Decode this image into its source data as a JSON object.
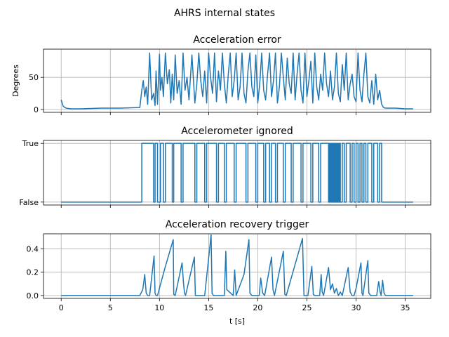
{
  "figure_title": "AHRS internal states",
  "colors": {
    "series": "#1f77b4",
    "grid": "#b0b0b0"
  },
  "chart_data": [
    {
      "type": "line",
      "title": "Acceleration error",
      "xlabel": "",
      "ylabel": "Degrees",
      "xlim": [
        -1.8,
        37.6
      ],
      "ylim": [
        -4.5,
        94
      ],
      "xticks": [
        0,
        5,
        10,
        15,
        20,
        25,
        30,
        35
      ],
      "show_xtick_labels": false,
      "yticks": [
        0,
        50
      ],
      "ytick_labels": [
        "0",
        "50"
      ],
      "grid": true,
      "series": [
        {
          "x": [
            0,
            0.2,
            0.5,
            1.0,
            2.0,
            4.0,
            6.0,
            8.0,
            8.2,
            8.35,
            8.5,
            8.65,
            8.8,
            9.0,
            9.2,
            9.4,
            9.55,
            9.65,
            9.8,
            10.0,
            10.1,
            10.25,
            10.4,
            10.6,
            10.8,
            11.0,
            11.15,
            11.3,
            11.45,
            11.6,
            11.8,
            12.0,
            12.2,
            12.4,
            12.6,
            12.8,
            13.0,
            13.3,
            13.6,
            13.8,
            14.0,
            14.2,
            14.4,
            14.6,
            14.8,
            15.0,
            15.2,
            15.4,
            15.6,
            15.8,
            16.0,
            16.2,
            16.4,
            16.6,
            16.8,
            17.0,
            17.2,
            17.4,
            17.6,
            17.8,
            18.0,
            18.2,
            18.4,
            18.6,
            18.8,
            19.0,
            19.2,
            19.4,
            19.6,
            19.8,
            20.0,
            20.2,
            20.4,
            20.6,
            20.8,
            21.0,
            21.2,
            21.4,
            21.6,
            21.8,
            22.0,
            22.2,
            22.4,
            22.6,
            22.8,
            23.0,
            23.2,
            23.4,
            23.6,
            23.8,
            24.0,
            24.2,
            24.4,
            24.6,
            24.8,
            25.0,
            25.2,
            25.4,
            25.6,
            25.8,
            26.0,
            26.2,
            26.4,
            26.6,
            26.8,
            27.0,
            27.2,
            27.4,
            27.6,
            27.8,
            28.0,
            28.2,
            28.4,
            28.6,
            28.8,
            29.0,
            29.2,
            29.4,
            29.6,
            29.8,
            30.0,
            30.2,
            30.4,
            30.6,
            30.8,
            31.0,
            31.2,
            31.4,
            31.6,
            31.8,
            32.0,
            32.2,
            32.4,
            32.6,
            32.8,
            33.0,
            33.5,
            34.0,
            35.0,
            35.8
          ],
          "y": [
            15,
            5,
            2,
            1,
            1,
            2,
            2,
            3,
            30,
            45,
            20,
            35,
            8,
            88,
            15,
            25,
            6,
            60,
            8,
            86,
            30,
            50,
            20,
            88,
            40,
            62,
            10,
            55,
            15,
            85,
            25,
            45,
            8,
            88,
            30,
            50,
            15,
            85,
            10,
            40,
            88,
            45,
            20,
            60,
            10,
            88,
            50,
            25,
            88,
            12,
            60,
            30,
            88,
            40,
            10,
            55,
            88,
            20,
            45,
            88,
            15,
            35,
            88,
            25,
            10,
            60,
            88,
            35,
            20,
            85,
            10,
            40,
            88,
            30,
            15,
            55,
            88,
            20,
            45,
            88,
            10,
            35,
            88,
            50,
            15,
            80,
            40,
            25,
            88,
            15,
            55,
            88,
            30,
            10,
            88,
            20,
            45,
            75,
            10,
            88,
            35,
            15,
            55,
            30,
            88,
            40,
            20,
            60,
            15,
            35,
            88,
            25,
            12,
            70,
            30,
            88,
            15,
            40,
            55,
            20,
            12,
            88,
            30,
            12,
            55,
            88,
            20,
            10,
            45,
            8,
            55,
            15,
            30,
            8,
            3,
            2,
            2,
            2,
            1,
            1
          ]
        }
      ]
    },
    {
      "type": "line",
      "title": "Accelerometer ignored",
      "xlabel": "",
      "ylabel": "",
      "xlim": [
        -1.8,
        37.6
      ],
      "ylim": [
        -0.05,
        1.05
      ],
      "xticks": [
        0,
        5,
        10,
        15,
        20,
        25,
        30,
        35
      ],
      "show_xtick_labels": false,
      "yticks": [
        0,
        1
      ],
      "ytick_labels": [
        "False",
        "True"
      ],
      "grid": true,
      "series": [
        {
          "step": true,
          "x": [
            0,
            8.2,
            8.35,
            9.4,
            9.55,
            9.8,
            10.1,
            10.4,
            10.6,
            11.3,
            11.45,
            12.2,
            12.4,
            13.6,
            13.8,
            14.6,
            14.8,
            15.8,
            16.0,
            16.6,
            16.8,
            17.6,
            17.8,
            18.8,
            19.0,
            19.8,
            20.0,
            20.6,
            20.8,
            21.2,
            21.4,
            21.8,
            22.0,
            22.6,
            22.8,
            23.4,
            23.6,
            24.4,
            24.6,
            25.4,
            25.6,
            26.2,
            26.4,
            27.2,
            27.3,
            27.4,
            27.5,
            27.6,
            27.7,
            27.8,
            27.9,
            28.0,
            28.1,
            28.2,
            28.3,
            28.4,
            28.6,
            28.8,
            29.0,
            29.4,
            29.6,
            29.8,
            30.0,
            30.2,
            30.4,
            30.6,
            30.8,
            31.0,
            31.2,
            31.6,
            31.8,
            32.2,
            32.4,
            32.6,
            32.8,
            35.8
          ],
          "y": [
            0,
            1,
            1,
            0,
            1,
            0,
            1,
            0,
            1,
            0,
            1,
            0,
            1,
            0,
            1,
            0,
            1,
            0,
            1,
            0,
            1,
            0,
            1,
            0,
            1,
            0,
            1,
            0,
            1,
            0,
            1,
            0,
            1,
            0,
            1,
            0,
            1,
            0,
            1,
            0,
            1,
            0,
            1,
            0,
            1,
            0,
            1,
            0,
            1,
            0,
            1,
            0,
            1,
            0,
            1,
            0,
            1,
            0,
            1,
            0,
            1,
            0,
            1,
            0,
            1,
            0,
            1,
            0,
            1,
            0,
            1,
            0,
            1,
            0,
            0,
            0
          ]
        }
      ]
    },
    {
      "type": "line",
      "title": "Acceleration recovery trigger",
      "xlabel": "t [s]",
      "ylabel": "",
      "xlim": [
        -1.8,
        37.6
      ],
      "ylim": [
        -0.025,
        0.53
      ],
      "xticks": [
        0,
        5,
        10,
        15,
        20,
        25,
        30,
        35
      ],
      "show_xtick_labels": true,
      "xtick_labels": [
        "0",
        "5",
        "10",
        "15",
        "20",
        "25",
        "30",
        "35"
      ],
      "yticks": [
        0.0,
        0.2,
        0.4
      ],
      "ytick_labels": [
        "0.0",
        "0.2",
        "0.4"
      ],
      "grid": true,
      "series": [
        {
          "x": [
            0,
            8.0,
            8.3,
            8.5,
            8.65,
            8.8,
            9.0,
            9.45,
            9.55,
            9.65,
            9.8,
            10.6,
            11.4,
            11.45,
            11.6,
            12.3,
            12.45,
            12.55,
            12.65,
            13.55,
            13.65,
            14.6,
            15.25,
            15.35,
            15.5,
            16.6,
            16.75,
            16.85,
            17.5,
            17.65,
            17.8,
            18.6,
            19.1,
            19.2,
            19.4,
            20.15,
            20.3,
            20.5,
            20.7,
            21.4,
            21.55,
            21.7,
            22.6,
            22.75,
            22.9,
            24.55,
            24.7,
            24.85,
            25.0,
            25.1,
            25.5,
            25.65,
            25.8,
            26.3,
            26.45,
            26.55,
            26.7,
            27.2,
            27.4,
            27.6,
            27.8,
            28.0,
            28.2,
            28.4,
            28.6,
            29.2,
            29.4,
            29.6,
            29.8,
            30.0,
            30.5,
            30.6,
            30.7,
            31.2,
            31.3,
            31.5,
            31.8,
            32.1,
            32.3,
            32.45,
            32.55,
            32.7,
            32.85,
            33.0,
            35.8
          ],
          "y": [
            0,
            0,
            0.05,
            0.18,
            0.02,
            0.0,
            0.0,
            0.34,
            0.02,
            0.0,
            0.0,
            0.25,
            0.48,
            0.01,
            0.0,
            0.28,
            0.1,
            0.02,
            0.0,
            0.33,
            0.0,
            0.0,
            0.52,
            0.02,
            0.0,
            0.0,
            0.38,
            0.05,
            0.0,
            0.22,
            0.0,
            0.18,
            0.48,
            0.02,
            0.0,
            0.0,
            0.15,
            0.02,
            0.0,
            0.33,
            0.05,
            0.0,
            0.38,
            0.01,
            0.0,
            0.49,
            0.0,
            0.0,
            0.0,
            0.0,
            0.25,
            0.01,
            0.0,
            0.0,
            0.18,
            0.03,
            0.0,
            0.24,
            0.05,
            0.1,
            0.02,
            0.06,
            0.0,
            0.03,
            0.0,
            0.24,
            0.03,
            0.0,
            0.0,
            0.06,
            0.28,
            0.02,
            0.0,
            0.3,
            0.02,
            0.0,
            0.0,
            0.0,
            0.12,
            0.03,
            0.0,
            0.13,
            0.02,
            0.0,
            0.0
          ]
        }
      ]
    }
  ]
}
